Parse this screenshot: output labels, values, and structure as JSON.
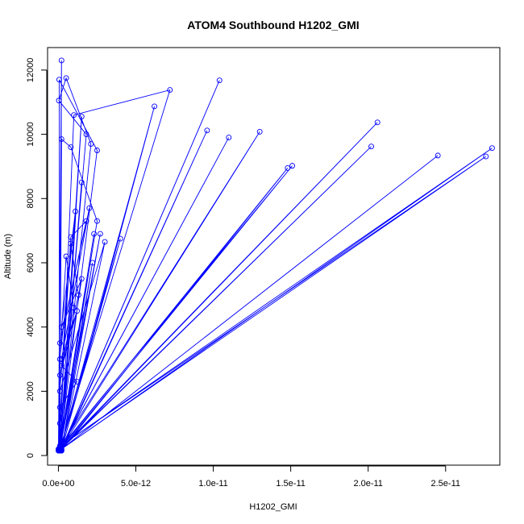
{
  "chart_data": {
    "type": "line",
    "title": "ATOM4 Southbound H1202_GMI",
    "xlabel": "H1202_GMI",
    "ylabel": "Altitude (m)",
    "xlim": [
      -7e-13,
      2.85e-11
    ],
    "ylim": [
      -300,
      12700
    ],
    "x_ticks": [
      0,
      5e-12,
      1e-11,
      1.5e-11,
      2e-11,
      2.5e-11
    ],
    "x_tick_labels": [
      "0.0e+00",
      "5.0e-12",
      "1.0e-11",
      "1.5e-11",
      "2.0e-11",
      "2.5e-11"
    ],
    "y_ticks": [
      0,
      2000,
      4000,
      6000,
      8000,
      10000,
      12000
    ],
    "y_tick_labels": [
      "0",
      "2000",
      "4000",
      "6000",
      "8000",
      "10000",
      "12000"
    ],
    "grid": false,
    "legend": "none",
    "series_color": "#0000ff",
    "markers": "open-circle",
    "series": [
      {
        "x": [
          0,
          2e-13,
          1e-13,
          2.5e-12,
          5e-14,
          6e-14,
          1.8e-12,
          3e-14,
          5e-13,
          2.1e-12,
          1e-13,
          1e-12,
          7.2e-12,
          1e-13,
          1.5e-12,
          2e-13,
          6.2e-12,
          1e-13,
          2e-13,
          8e-13,
          2.5e-12,
          1e-13,
          2.3e-12,
          1e-13,
          1.5e-12,
          1.5e-13,
          1.04e-11,
          2e-13,
          9.6e-12,
          2e-13,
          2.2e-12,
          1e-13,
          1.1e-11,
          1e-13,
          1.3e-11,
          5e-14,
          1.51e-11,
          1e-13,
          2.06e-11,
          1e-13,
          2.02e-11,
          1e-13,
          2.45e-11,
          2e-13,
          2.8e-11,
          1.5e-13,
          2.76e-11,
          3e-14,
          1.48e-11,
          2e-13,
          2.7e-12,
          1e-13,
          4e-12,
          2e-13,
          3e-12,
          1e-13,
          8e-13,
          1.3e-12,
          1e-13,
          1.2e-12,
          2e-13,
          2e-12,
          1e-13,
          1.8e-12,
          8e-13,
          1e-13,
          1.5e-12,
          2e-13,
          1.1e-12,
          1e-13,
          5e-13,
          1e-12,
          2e-13,
          1.2e-12,
          1e-13,
          0
        ],
        "y": [
          150,
          12300,
          300,
          9500,
          11700,
          200,
          10000,
          11050,
          11750,
          9700,
          180,
          10600,
          11380,
          200,
          10550,
          150,
          10870,
          160,
          9850,
          9600,
          7300,
          170,
          6900,
          300,
          8500,
          160,
          11680,
          200,
          10120,
          150,
          6000,
          170,
          9900,
          160,
          10080,
          200,
          9020,
          150,
          10370,
          180,
          9620,
          160,
          9340,
          200,
          9570,
          300,
          9310,
          150,
          8950,
          160,
          6900,
          200,
          6750,
          180,
          6650,
          2000,
          6600,
          5000,
          2500,
          4500,
          3000,
          7700,
          3500,
          7300,
          6800,
          1000,
          5500,
          4000,
          7600,
          3000,
          6200,
          4600,
          2800,
          2300,
          1500,
          200
        ]
      }
    ]
  }
}
